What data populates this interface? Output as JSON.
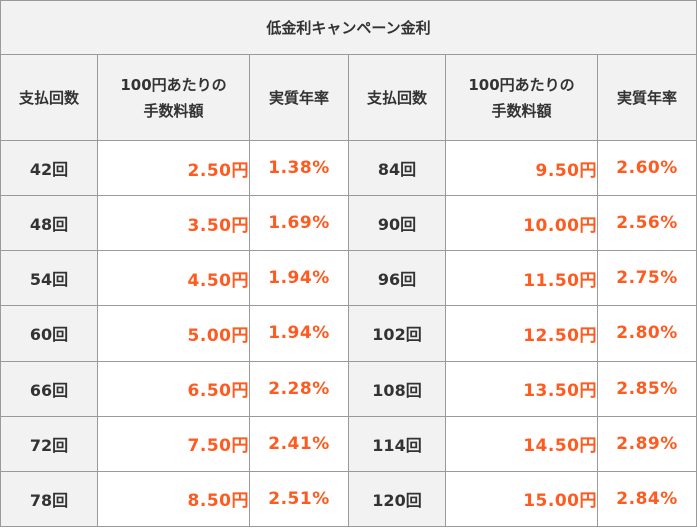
{
  "title": "低金利キャンペーン金利",
  "headers": {
    "payments": "支払回数",
    "fee_line1": "100円あたりの",
    "fee_line2": "手数料額",
    "apr": "実質年率"
  },
  "rows": [
    {
      "left": {
        "payments": "42回",
        "fee": "2.50円",
        "apr": "1.38%"
      },
      "right": {
        "payments": "84回",
        "fee": "9.50円",
        "apr": "2.60%"
      }
    },
    {
      "left": {
        "payments": "48回",
        "fee": "3.50円",
        "apr": "1.69%"
      },
      "right": {
        "payments": "90回",
        "fee": "10.00円",
        "apr": "2.56%"
      }
    },
    {
      "left": {
        "payments": "54回",
        "fee": "4.50円",
        "apr": "1.94%"
      },
      "right": {
        "payments": "96回",
        "fee": "11.50円",
        "apr": "2.75%"
      }
    },
    {
      "left": {
        "payments": "60回",
        "fee": "5.00円",
        "apr": "1.94%"
      },
      "right": {
        "payments": "102回",
        "fee": "12.50円",
        "apr": "2.80%"
      }
    },
    {
      "left": {
        "payments": "66回",
        "fee": "6.50円",
        "apr": "2.28%"
      },
      "right": {
        "payments": "108回",
        "fee": "13.50円",
        "apr": "2.85%"
      }
    },
    {
      "left": {
        "payments": "72回",
        "fee": "7.50円",
        "apr": "2.41%"
      },
      "right": {
        "payments": "114回",
        "fee": "14.50円",
        "apr": "2.89%"
      }
    },
    {
      "left": {
        "payments": "78回",
        "fee": "8.50円",
        "apr": "2.51%"
      },
      "right": {
        "payments": "120回",
        "fee": "15.00円",
        "apr": "2.84%"
      }
    }
  ],
  "colors": {
    "accent": "#ff5a1f",
    "header_bg": "#f2f2f2",
    "border": "#9a9a9a",
    "text": "#333333"
  }
}
